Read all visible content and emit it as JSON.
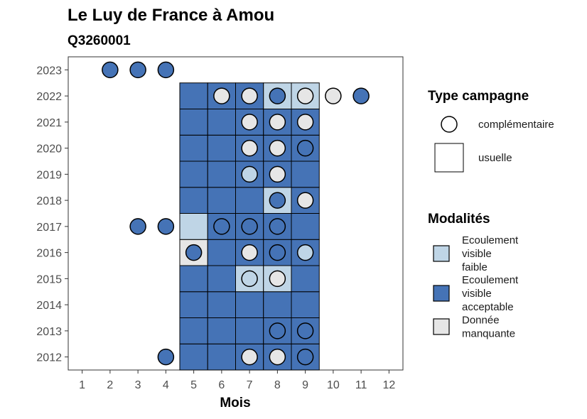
{
  "chart_data": {
    "type": "heatmap",
    "title": "Le Luy de France à Amou",
    "subtitle": "Q3260001",
    "xlabel": "Mois",
    "ylabel": "",
    "x_ticks": [
      1,
      2,
      3,
      4,
      5,
      6,
      7,
      8,
      9,
      10,
      11,
      12
    ],
    "y_ticks": [
      2012,
      2013,
      2014,
      2015,
      2016,
      2017,
      2018,
      2019,
      2020,
      2021,
      2022,
      2023
    ],
    "xlim": [
      0.5,
      12.5
    ],
    "ylim": [
      2011.5,
      2023.5
    ],
    "grid": false,
    "colors": {
      "faible": "#bfd5e6",
      "acceptable": "#4573b6",
      "manquante": "#e6e6e6"
    },
    "legend": {
      "placement": "right",
      "shape_title": "Type campagne",
      "shape_items": [
        {
          "key": "complementaire",
          "label": "complémentaire",
          "shape": "circle"
        },
        {
          "key": "usuelle",
          "label": "usuelle",
          "shape": "square"
        }
      ],
      "fill_title": "Modalités",
      "fill_items": [
        {
          "key": "faible",
          "lines": [
            "Ecoulement",
            "visible",
            "faible"
          ]
        },
        {
          "key": "acceptable",
          "lines": [
            "Ecoulement",
            "visible",
            "acceptable"
          ]
        },
        {
          "key": "manquante",
          "lines": [
            "Donnée",
            "manquante"
          ]
        }
      ]
    },
    "usuelle": [
      {
        "year": 2012,
        "month": 5,
        "mod": "acceptable"
      },
      {
        "year": 2012,
        "month": 6,
        "mod": "acceptable"
      },
      {
        "year": 2012,
        "month": 7,
        "mod": "acceptable"
      },
      {
        "year": 2012,
        "month": 8,
        "mod": "acceptable"
      },
      {
        "year": 2012,
        "month": 9,
        "mod": "acceptable"
      },
      {
        "year": 2013,
        "month": 5,
        "mod": "acceptable"
      },
      {
        "year": 2013,
        "month": 6,
        "mod": "acceptable"
      },
      {
        "year": 2013,
        "month": 7,
        "mod": "acceptable"
      },
      {
        "year": 2013,
        "month": 8,
        "mod": "acceptable"
      },
      {
        "year": 2013,
        "month": 9,
        "mod": "acceptable"
      },
      {
        "year": 2014,
        "month": 5,
        "mod": "acceptable"
      },
      {
        "year": 2014,
        "month": 6,
        "mod": "acceptable"
      },
      {
        "year": 2014,
        "month": 7,
        "mod": "acceptable"
      },
      {
        "year": 2014,
        "month": 8,
        "mod": "acceptable"
      },
      {
        "year": 2014,
        "month": 9,
        "mod": "acceptable"
      },
      {
        "year": 2015,
        "month": 5,
        "mod": "acceptable"
      },
      {
        "year": 2015,
        "month": 6,
        "mod": "acceptable"
      },
      {
        "year": 2015,
        "month": 7,
        "mod": "faible"
      },
      {
        "year": 2015,
        "month": 8,
        "mod": "faible"
      },
      {
        "year": 2015,
        "month": 9,
        "mod": "acceptable"
      },
      {
        "year": 2016,
        "month": 5,
        "mod": "manquante"
      },
      {
        "year": 2016,
        "month": 6,
        "mod": "acceptable"
      },
      {
        "year": 2016,
        "month": 7,
        "mod": "acceptable"
      },
      {
        "year": 2016,
        "month": 8,
        "mod": "acceptable"
      },
      {
        "year": 2016,
        "month": 9,
        "mod": "acceptable"
      },
      {
        "year": 2017,
        "month": 5,
        "mod": "faible"
      },
      {
        "year": 2017,
        "month": 6,
        "mod": "acceptable"
      },
      {
        "year": 2017,
        "month": 7,
        "mod": "acceptable"
      },
      {
        "year": 2017,
        "month": 8,
        "mod": "acceptable"
      },
      {
        "year": 2017,
        "month": 9,
        "mod": "acceptable"
      },
      {
        "year": 2018,
        "month": 5,
        "mod": "acceptable"
      },
      {
        "year": 2018,
        "month": 6,
        "mod": "acceptable"
      },
      {
        "year": 2018,
        "month": 7,
        "mod": "acceptable"
      },
      {
        "year": 2018,
        "month": 8,
        "mod": "faible"
      },
      {
        "year": 2018,
        "month": 9,
        "mod": "acceptable"
      },
      {
        "year": 2019,
        "month": 5,
        "mod": "acceptable"
      },
      {
        "year": 2019,
        "month": 6,
        "mod": "acceptable"
      },
      {
        "year": 2019,
        "month": 7,
        "mod": "acceptable"
      },
      {
        "year": 2019,
        "month": 8,
        "mod": "acceptable"
      },
      {
        "year": 2019,
        "month": 9,
        "mod": "acceptable"
      },
      {
        "year": 2020,
        "month": 5,
        "mod": "acceptable"
      },
      {
        "year": 2020,
        "month": 6,
        "mod": "acceptable"
      },
      {
        "year": 2020,
        "month": 7,
        "mod": "acceptable"
      },
      {
        "year": 2020,
        "month": 8,
        "mod": "acceptable"
      },
      {
        "year": 2020,
        "month": 9,
        "mod": "acceptable"
      },
      {
        "year": 2021,
        "month": 5,
        "mod": "acceptable"
      },
      {
        "year": 2021,
        "month": 6,
        "mod": "acceptable"
      },
      {
        "year": 2021,
        "month": 7,
        "mod": "acceptable"
      },
      {
        "year": 2021,
        "month": 8,
        "mod": "acceptable"
      },
      {
        "year": 2021,
        "month": 9,
        "mod": "acceptable"
      },
      {
        "year": 2022,
        "month": 5,
        "mod": "acceptable"
      },
      {
        "year": 2022,
        "month": 6,
        "mod": "acceptable"
      },
      {
        "year": 2022,
        "month": 7,
        "mod": "acceptable"
      },
      {
        "year": 2022,
        "month": 8,
        "mod": "faible"
      },
      {
        "year": 2022,
        "month": 9,
        "mod": "faible"
      }
    ],
    "complementaire": [
      {
        "year": 2012,
        "month": 4,
        "mod": "acceptable"
      },
      {
        "year": 2012,
        "month": 7,
        "mod": "manquante"
      },
      {
        "year": 2012,
        "month": 8,
        "mod": "manquante"
      },
      {
        "year": 2012,
        "month": 9,
        "mod": "acceptable"
      },
      {
        "year": 2013,
        "month": 8,
        "mod": "acceptable"
      },
      {
        "year": 2013,
        "month": 9,
        "mod": "acceptable"
      },
      {
        "year": 2015,
        "month": 7,
        "mod": "faible"
      },
      {
        "year": 2015,
        "month": 8,
        "mod": "manquante"
      },
      {
        "year": 2016,
        "month": 5,
        "mod": "acceptable"
      },
      {
        "year": 2016,
        "month": 7,
        "mod": "manquante"
      },
      {
        "year": 2016,
        "month": 8,
        "mod": "acceptable"
      },
      {
        "year": 2016,
        "month": 9,
        "mod": "faible"
      },
      {
        "year": 2017,
        "month": 3,
        "mod": "acceptable"
      },
      {
        "year": 2017,
        "month": 4,
        "mod": "acceptable"
      },
      {
        "year": 2017,
        "month": 6,
        "mod": "acceptable"
      },
      {
        "year": 2017,
        "month": 7,
        "mod": "acceptable"
      },
      {
        "year": 2017,
        "month": 8,
        "mod": "acceptable"
      },
      {
        "year": 2018,
        "month": 8,
        "mod": "acceptable"
      },
      {
        "year": 2018,
        "month": 9,
        "mod": "manquante"
      },
      {
        "year": 2019,
        "month": 7,
        "mod": "faible"
      },
      {
        "year": 2019,
        "month": 8,
        "mod": "manquante"
      },
      {
        "year": 2020,
        "month": 7,
        "mod": "manquante"
      },
      {
        "year": 2020,
        "month": 8,
        "mod": "manquante"
      },
      {
        "year": 2020,
        "month": 9,
        "mod": "acceptable"
      },
      {
        "year": 2021,
        "month": 7,
        "mod": "manquante"
      },
      {
        "year": 2021,
        "month": 8,
        "mod": "manquante"
      },
      {
        "year": 2021,
        "month": 9,
        "mod": "manquante"
      },
      {
        "year": 2022,
        "month": 6,
        "mod": "manquante"
      },
      {
        "year": 2022,
        "month": 7,
        "mod": "manquante"
      },
      {
        "year": 2022,
        "month": 8,
        "mod": "acceptable"
      },
      {
        "year": 2022,
        "month": 9,
        "mod": "manquante"
      },
      {
        "year": 2022,
        "month": 10,
        "mod": "manquante"
      },
      {
        "year": 2022,
        "month": 11,
        "mod": "acceptable"
      },
      {
        "year": 2023,
        "month": 2,
        "mod": "acceptable"
      },
      {
        "year": 2023,
        "month": 3,
        "mod": "acceptable"
      },
      {
        "year": 2023,
        "month": 4,
        "mod": "acceptable"
      }
    ]
  }
}
